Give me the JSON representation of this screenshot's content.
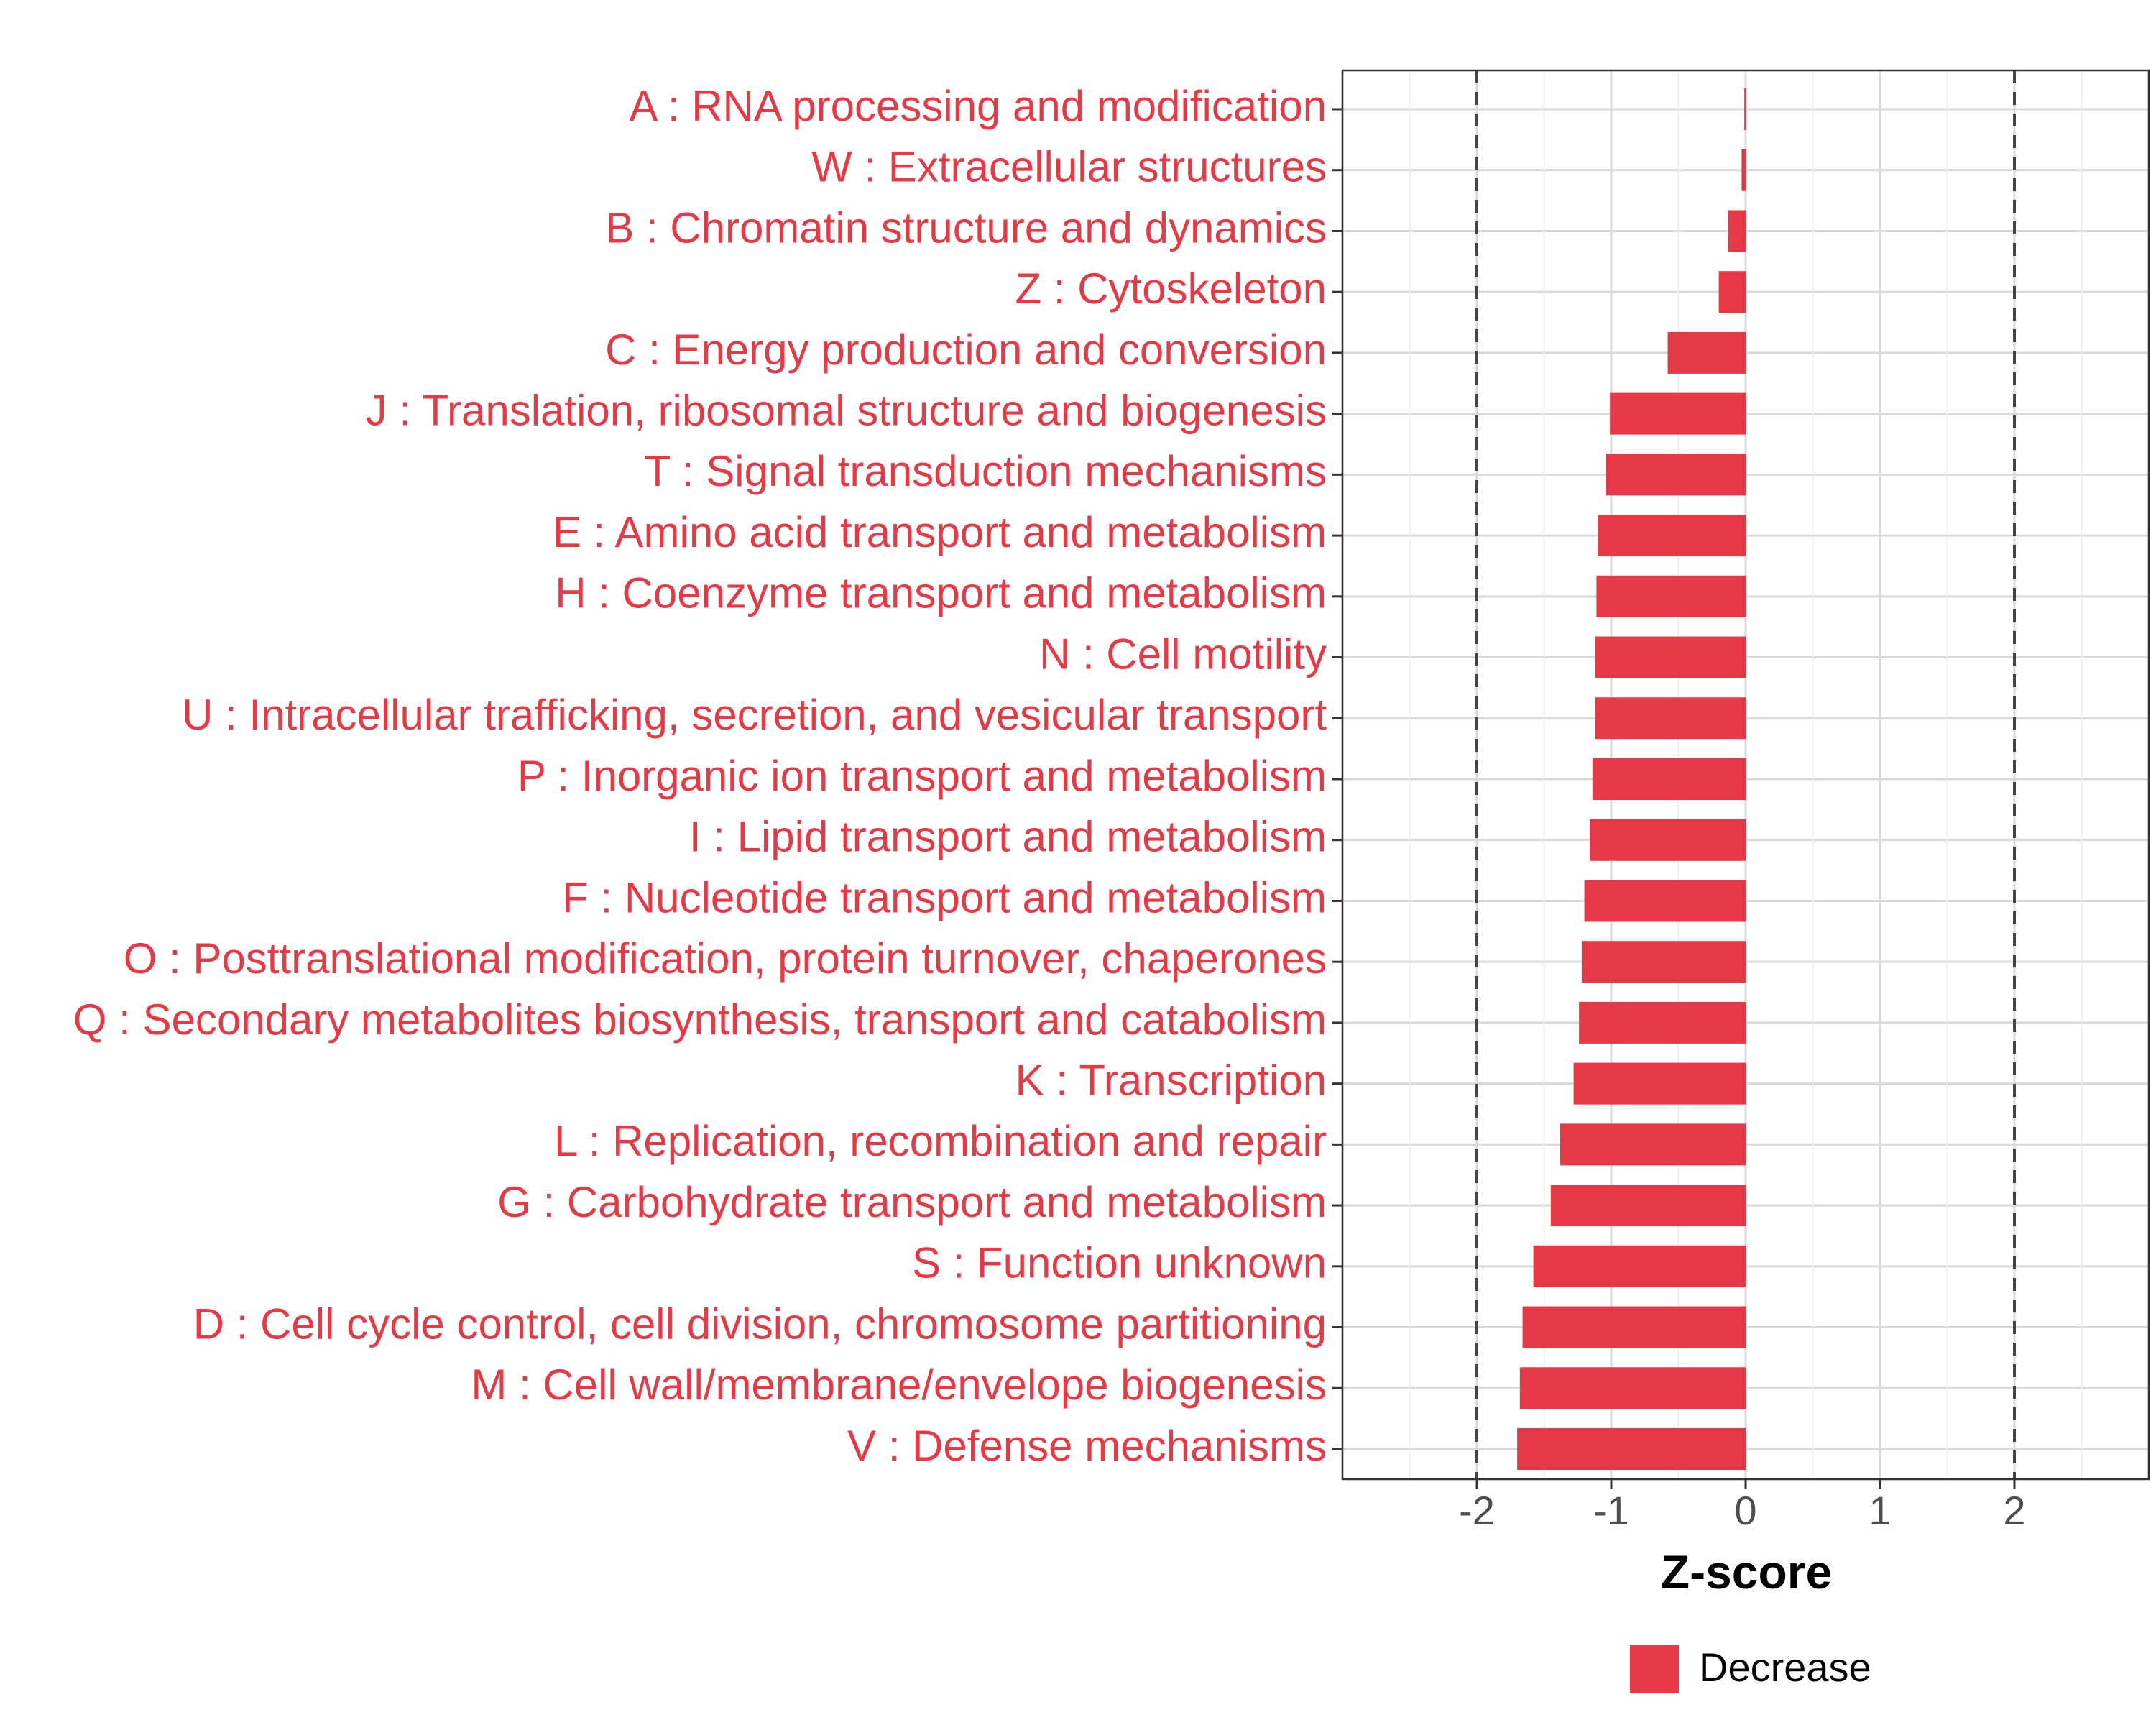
{
  "chart_data": {
    "type": "bar",
    "orientation": "horizontal",
    "xlabel": "Z-score",
    "xlim": [
      -3,
      3
    ],
    "xticks": [
      -2,
      -1,
      0,
      1,
      2
    ],
    "reference_lines": [
      -2,
      2
    ],
    "grid": true,
    "legend_position": "bottom",
    "series": [
      {
        "name": "Decrease",
        "color": "#e63946"
      }
    ],
    "categories": [
      "A : RNA processing and modification",
      "W : Extracellular structures",
      "B : Chromatin structure and dynamics",
      "Z : Cytoskeleton",
      "C : Energy production and conversion",
      "J : Translation, ribosomal structure and biogenesis",
      "T : Signal transduction mechanisms",
      "E : Amino acid transport and metabolism",
      "H : Coenzyme transport and metabolism",
      "N : Cell motility",
      "U : Intracellular trafficking, secretion, and vesicular transport",
      "P : Inorganic ion transport and metabolism",
      "I : Lipid transport and metabolism",
      "F : Nucleotide transport and metabolism",
      "O : Posttranslational modification, protein turnover, chaperones",
      "Q : Secondary metabolites biosynthesis, transport and catabolism",
      "K : Transcription",
      "L : Replication, recombination and repair",
      "G : Carbohydrate transport and metabolism",
      "S : Function unknown",
      "D : Cell cycle control, cell division, chromosome partitioning",
      "M : Cell wall/membrane/envelope biogenesis",
      "V : Defense mechanisms"
    ],
    "values": [
      -0.01,
      -0.03,
      -0.13,
      -0.2,
      -0.58,
      -1.01,
      -1.04,
      -1.1,
      -1.11,
      -1.12,
      -1.12,
      -1.14,
      -1.16,
      -1.2,
      -1.22,
      -1.24,
      -1.28,
      -1.38,
      -1.45,
      -1.58,
      -1.66,
      -1.68,
      -1.7
    ]
  }
}
